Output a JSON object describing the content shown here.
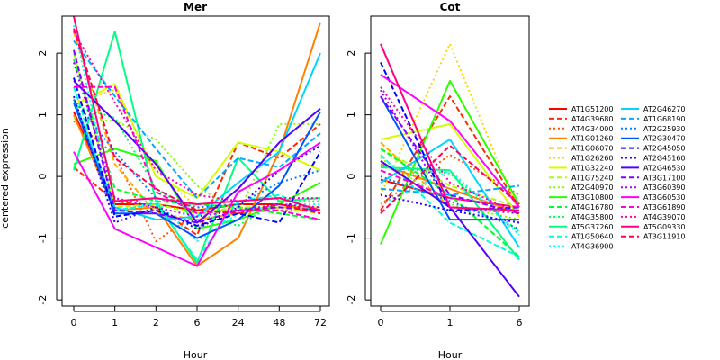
{
  "y_axis_label": "centered expression",
  "legend": [
    {
      "name": "AT1G51200",
      "color": "#ff0000",
      "dash": "solid"
    },
    {
      "name": "AT4G39680",
      "color": "#ff2a00",
      "dash": "dashed"
    },
    {
      "name": "AT4G34000",
      "color": "#ff5500",
      "dash": "dotted"
    },
    {
      "name": "AT1G01260",
      "color": "#ff8000",
      "dash": "solid"
    },
    {
      "name": "AT1G06070",
      "color": "#ffaa00",
      "dash": "dashed"
    },
    {
      "name": "AT1G26260",
      "color": "#ffd500",
      "dash": "dotted"
    },
    {
      "name": "AT1G32240",
      "color": "#d5ff00",
      "dash": "solid"
    },
    {
      "name": "AT1G75240",
      "color": "#aaff00",
      "dash": "dashed"
    },
    {
      "name": "AT2G40970",
      "color": "#80ff00",
      "dash": "dotted"
    },
    {
      "name": "AT3G10800",
      "color": "#2aff00",
      "dash": "solid"
    },
    {
      "name": "AT4G16780",
      "color": "#00ff2a",
      "dash": "dashed"
    },
    {
      "name": "AT4G35800",
      "color": "#00ff55",
      "dash": "dotted"
    },
    {
      "name": "AT5G37260",
      "color": "#00ff80",
      "dash": "solid"
    },
    {
      "name": "AT1G50640",
      "color": "#00ffd5",
      "dash": "dashed"
    },
    {
      "name": "AT4G36900",
      "color": "#00ffff",
      "dash": "dotted"
    },
    {
      "name": "AT2G46270",
      "color": "#00d5ff",
      "dash": "solid"
    },
    {
      "name": "AT1G68190",
      "color": "#00aaff",
      "dash": "dashed"
    },
    {
      "name": "AT2G25930",
      "color": "#0080ff",
      "dash": "dotted"
    },
    {
      "name": "AT2G30470",
      "color": "#0055ff",
      "dash": "solid"
    },
    {
      "name": "AT2G45050",
      "color": "#0000ff",
      "dash": "dashed"
    },
    {
      "name": "AT2G45160",
      "color": "#2a00ff",
      "dash": "dotted"
    },
    {
      "name": "AT2G46530",
      "color": "#5500ff",
      "dash": "solid"
    },
    {
      "name": "AT3G17100",
      "color": "#8000ff",
      "dash": "dashed"
    },
    {
      "name": "AT3G60390",
      "color": "#aa00ff",
      "dash": "dotted"
    },
    {
      "name": "AT3G60530",
      "color": "#ff00ff",
      "dash": "solid"
    },
    {
      "name": "AT3G61890",
      "color": "#ff00d5",
      "dash": "dashed"
    },
    {
      "name": "AT4G39070",
      "color": "#ff00aa",
      "dash": "dotted"
    },
    {
      "name": "AT5G09330",
      "color": "#ff0080",
      "dash": "solid"
    },
    {
      "name": "AT3G11910",
      "color": "#ff0055",
      "dash": "dashed"
    }
  ],
  "chart_data": [
    {
      "type": "line",
      "title": "Mer",
      "xlabel": "Hour",
      "ylabel": "centered expression",
      "categories": [
        "0",
        "1",
        "2",
        "6",
        "24",
        "48",
        "72"
      ],
      "ylim": [
        -2.1,
        2.6
      ],
      "yticks": [
        -2,
        -1,
        0,
        1,
        2
      ],
      "series": [
        {
          "name": "AT1G51200",
          "values": [
            1.05,
            -0.45,
            -0.45,
            -0.55,
            -0.45,
            -0.45,
            -0.55
          ]
        },
        {
          "name": "AT4G39680",
          "values": [
            0.15,
            -0.4,
            -0.5,
            -0.95,
            0.55,
            0.3,
            0.85
          ]
        },
        {
          "name": "AT4G34000",
          "values": [
            0.9,
            0.35,
            -1.05,
            -0.6,
            -0.5,
            -0.55,
            -0.55
          ]
        },
        {
          "name": "AT1G01260",
          "values": [
            1.0,
            -0.55,
            -0.5,
            -1.45,
            -1.0,
            0.4,
            2.5
          ]
        },
        {
          "name": "AT1G06070",
          "values": [
            2.35,
            0.2,
            -0.6,
            -0.7,
            -0.6,
            -0.5,
            -0.5
          ]
        },
        {
          "name": "AT1G26260",
          "values": [
            1.2,
            1.4,
            0.1,
            -0.5,
            -0.6,
            -0.5,
            -0.5
          ]
        },
        {
          "name": "AT1G32240",
          "values": [
            1.15,
            1.5,
            0.0,
            -0.35,
            0.55,
            0.4,
            0.1
          ]
        },
        {
          "name": "AT1G75240",
          "values": [
            2.0,
            -0.5,
            -0.45,
            -0.6,
            -0.5,
            -0.5,
            -0.6
          ]
        },
        {
          "name": "AT2G40970",
          "values": [
            0.95,
            0.9,
            0.6,
            -0.15,
            -0.6,
            0.85,
            0.85
          ]
        },
        {
          "name": "AT3G10800",
          "values": [
            0.2,
            0.45,
            0.25,
            -0.85,
            -0.7,
            -0.45,
            -0.1
          ]
        },
        {
          "name": "AT4G16780",
          "values": [
            1.9,
            -0.2,
            -0.4,
            -0.45,
            -0.5,
            -0.6,
            -0.7
          ]
        },
        {
          "name": "AT4G35800",
          "values": [
            1.15,
            0.95,
            -0.2,
            -0.6,
            -0.8,
            -0.4,
            -0.4
          ]
        },
        {
          "name": "AT5G37260",
          "values": [
            0.1,
            2.35,
            -0.4,
            -1.4,
            0.3,
            -0.4,
            -0.35
          ]
        },
        {
          "name": "AT1G50640",
          "values": [
            1.45,
            -0.55,
            -0.45,
            -1.35,
            -0.4,
            -0.3,
            -0.6
          ]
        },
        {
          "name": "AT4G36900",
          "values": [
            2.45,
            -0.6,
            -0.4,
            -1.05,
            -0.6,
            -0.45,
            -0.45
          ]
        },
        {
          "name": "AT2G46270",
          "values": [
            1.25,
            -0.5,
            -0.7,
            -0.65,
            -0.1,
            0.4,
            2.0
          ]
        },
        {
          "name": "AT1G68190",
          "values": [
            2.2,
            1.3,
            0.45,
            -0.35,
            0.3,
            0.15,
            0.7
          ]
        },
        {
          "name": "AT2G25930",
          "values": [
            1.25,
            0.4,
            -0.35,
            -0.5,
            -0.45,
            -0.1,
            0.1
          ]
        },
        {
          "name": "AT2G30470",
          "values": [
            1.2,
            -0.6,
            -0.6,
            -1.0,
            -0.7,
            -0.15,
            1.05
          ]
        },
        {
          "name": "AT2G45050",
          "values": [
            1.6,
            -0.65,
            -0.55,
            -0.8,
            -0.6,
            -0.75,
            0.4
          ]
        },
        {
          "name": "AT2G45160",
          "values": [
            1.3,
            -0.75,
            -0.5,
            -0.85,
            -0.5,
            0.1,
            0.5
          ]
        },
        {
          "name": "AT2G46530",
          "values": [
            1.55,
            0.9,
            0.2,
            -0.75,
            -0.2,
            0.55,
            1.1
          ]
        },
        {
          "name": "AT3G17100",
          "values": [
            2.05,
            -0.55,
            -0.6,
            -0.75,
            -0.55,
            -0.5,
            -0.55
          ]
        },
        {
          "name": "AT3G60390",
          "values": [
            1.85,
            -0.35,
            -0.5,
            -0.65,
            -0.55,
            -0.45,
            -0.5
          ]
        },
        {
          "name": "AT3G60530",
          "values": [
            0.4,
            -0.85,
            -1.15,
            -1.45,
            -0.25,
            0.1,
            0.55
          ]
        },
        {
          "name": "AT3G61890",
          "values": [
            1.45,
            1.45,
            -0.25,
            -0.6,
            -0.55,
            -0.55,
            -0.7
          ]
        },
        {
          "name": "AT4G39070",
          "values": [
            2.35,
            1.2,
            0.1,
            -0.3,
            -0.4,
            -0.35,
            -0.35
          ]
        },
        {
          "name": "AT5G09330",
          "values": [
            2.6,
            -0.4,
            -0.35,
            -0.45,
            -0.4,
            -0.35,
            -0.55
          ]
        },
        {
          "name": "AT3G11910",
          "values": [
            2.4,
            0.3,
            -0.2,
            -0.55,
            -0.6,
            -0.45,
            -0.6
          ]
        }
      ]
    },
    {
      "type": "line",
      "title": "Cot",
      "xlabel": "Hour",
      "ylabel": "",
      "categories": [
        "0",
        "1",
        "6"
      ],
      "ylim": [
        -2.1,
        2.6
      ],
      "yticks": [
        -2,
        -1,
        0,
        1,
        2
      ],
      "series": [
        {
          "name": "AT1G51200",
          "values": [
            -0.05,
            -0.35,
            -0.5
          ]
        },
        {
          "name": "AT4G39680",
          "values": [
            -0.55,
            1.3,
            -0.5
          ]
        },
        {
          "name": "AT4G34000",
          "values": [
            -0.45,
            0.35,
            -0.3
          ]
        },
        {
          "name": "AT1G01260",
          "values": [
            0.2,
            -0.2,
            -0.6
          ]
        },
        {
          "name": "AT1G06070",
          "values": [
            0.55,
            -0.5,
            -0.55
          ]
        },
        {
          "name": "AT1G26260",
          "values": [
            -0.3,
            2.15,
            -0.6
          ]
        },
        {
          "name": "AT1G32240",
          "values": [
            0.6,
            0.85,
            -0.65
          ]
        },
        {
          "name": "AT1G75240",
          "values": [
            0.45,
            -0.15,
            -0.5
          ]
        },
        {
          "name": "AT2G40970",
          "values": [
            0.3,
            -0.45,
            -0.7
          ]
        },
        {
          "name": "AT3G10800",
          "values": [
            -1.1,
            1.55,
            -0.45
          ]
        },
        {
          "name": "AT4G16780",
          "values": [
            0.45,
            -0.3,
            -1.3
          ]
        },
        {
          "name": "AT4G35800",
          "values": [
            0.15,
            0.05,
            -0.9
          ]
        },
        {
          "name": "AT5G37260",
          "values": [
            0.15,
            0.1,
            -1.35
          ]
        },
        {
          "name": "AT1G50640",
          "values": [
            0.35,
            -0.75,
            -1.3
          ]
        },
        {
          "name": "AT4G36900",
          "values": [
            -0.45,
            0.1,
            -0.95
          ]
        },
        {
          "name": "AT2G46270",
          "values": [
            -0.1,
            0.6,
            -1.15
          ]
        },
        {
          "name": "AT1G68190",
          "values": [
            -0.2,
            -0.3,
            -0.15
          ]
        },
        {
          "name": "AT2G25930",
          "values": [
            0.0,
            -0.4,
            -0.85
          ]
        },
        {
          "name": "AT2G30470",
          "values": [
            1.3,
            -0.7,
            -0.7
          ]
        },
        {
          "name": "AT2G45050",
          "values": [
            1.85,
            -0.55,
            -0.5
          ]
        },
        {
          "name": "AT2G45160",
          "values": [
            -0.3,
            -0.55,
            -0.75
          ]
        },
        {
          "name": "AT2G46530",
          "values": [
            0.25,
            -0.5,
            -1.95
          ]
        },
        {
          "name": "AT3G17100",
          "values": [
            1.3,
            -0.3,
            -0.6
          ]
        },
        {
          "name": "AT3G60390",
          "values": [
            1.4,
            -0.5,
            -0.6
          ]
        },
        {
          "name": "AT3G60530",
          "values": [
            1.65,
            0.9,
            -0.5
          ]
        },
        {
          "name": "AT3G61890",
          "values": [
            0.1,
            -0.35,
            -0.5
          ]
        },
        {
          "name": "AT4G39070",
          "values": [
            1.45,
            -0.1,
            -0.6
          ]
        },
        {
          "name": "AT5G09330",
          "values": [
            2.15,
            -0.5,
            -0.55
          ]
        },
        {
          "name": "AT3G11910",
          "values": [
            -0.6,
            0.5,
            -0.45
          ]
        }
      ]
    }
  ]
}
